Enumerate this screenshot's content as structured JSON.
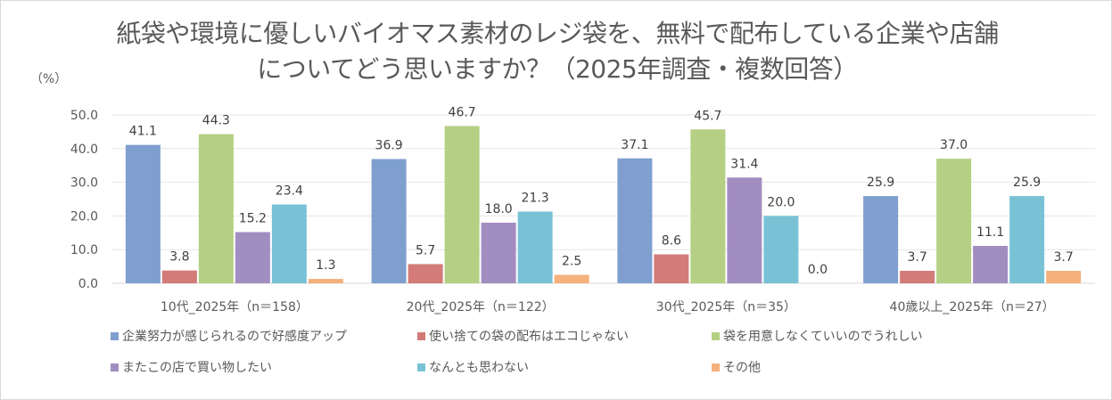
{
  "chart_data": {
    "type": "bar",
    "title": "紙袋や環境に優しいバイオマス素材のレジ袋を、無料で配布している企業や店舗についてどう思いますか？（2025年調査・複数回答）",
    "ylabel": "（%）",
    "xlabel": "",
    "ylim": [
      0,
      50
    ],
    "yticks": [
      "0.0",
      "10.0",
      "20.0",
      "30.0",
      "40.0",
      "50.0"
    ],
    "grid": true,
    "legend_position": "bottom",
    "categories": [
      "10代_2025年（n＝158）",
      "20代_2025年（n＝122）",
      "30代_2025年（n＝35）",
      "40歳以上_2025年（n＝27）"
    ],
    "series": [
      {
        "name": "企業努力が感じられるので好感度アップ",
        "color": "#7f9fcf",
        "values": [
          41.1,
          36.9,
          37.1,
          25.9
        ]
      },
      {
        "name": "使い捨ての袋の配布はエコじゃない",
        "color": "#d27b78",
        "values": [
          3.8,
          5.7,
          8.6,
          3.7
        ]
      },
      {
        "name": "袋を用意しなくていいのでうれしい",
        "color": "#b5cf84",
        "values": [
          44.3,
          46.7,
          45.7,
          37.0
        ]
      },
      {
        "name": "またこの店で買い物したい",
        "color": "#a28dc0",
        "values": [
          15.2,
          18.0,
          31.4,
          11.1
        ]
      },
      {
        "name": "なんとも思わない",
        "color": "#79c2d6",
        "values": [
          23.4,
          21.3,
          20.0,
          25.9
        ]
      },
      {
        "name": "その他",
        "color": "#f5b07c",
        "values": [
          1.3,
          2.5,
          0.0,
          3.7
        ]
      }
    ]
  }
}
